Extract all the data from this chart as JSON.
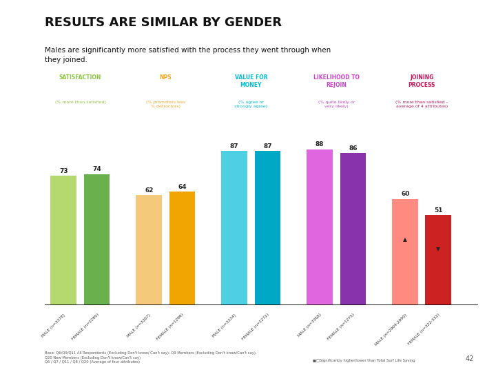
{
  "title": "RESULTS ARE SIMILAR BY GENDER",
  "subtitle": "Males are significantly more satisfied with the process they went through when\nthey joined.",
  "background_color": "#ffffff",
  "left_bar_color": "#29aee0",
  "groups": [
    {
      "label": "SATISFACTION",
      "sublabel": "(% more than satisfied)",
      "label_color": "#8dc63f",
      "bars": [
        {
          "value": 73,
          "color": "#b5d96e",
          "x_label": "MALE (n=3378)"
        },
        {
          "value": 74,
          "color": "#6ab04c",
          "x_label": "FEMALE (n=1289)"
        }
      ]
    },
    {
      "label": "NPS",
      "sublabel": "(% promoters less\n% detractors)",
      "label_color": "#f5a623",
      "bars": [
        {
          "value": 62,
          "color": "#f5c97a",
          "x_label": "MALE (n=3387)"
        },
        {
          "value": 64,
          "color": "#f0a500",
          "x_label": "FEMALE (n=1299)"
        }
      ]
    },
    {
      "label": "VALUE FOR\nMONEY",
      "sublabel": "(% agree or\nstrongly agree)",
      "label_color": "#00bcd4",
      "bars": [
        {
          "value": 87,
          "color": "#4dd0e1",
          "x_label": "MALE (n=3334)"
        },
        {
          "value": 87,
          "color": "#00a8c6",
          "x_label": "FEMALE (n=1272)"
        }
      ]
    },
    {
      "label": "LIKELIHOOD TO\nREJOIN",
      "sublabel": "(% quite likely or\nvery likely)",
      "label_color": "#cc44cc",
      "bars": [
        {
          "value": 88,
          "color": "#e066e0",
          "x_label": "MALE (n=3368)"
        },
        {
          "value": 86,
          "color": "#8833aa",
          "x_label": "FEMALE (n=1275)"
        }
      ]
    },
    {
      "label": "JOINING\nPROCESS",
      "sublabel": "(% more than satisfied –\naverage of 4 attributes)",
      "label_color": "#c2185b",
      "bars": [
        {
          "value": 60,
          "color": "#ff8a80",
          "x_label": "MALE (n=2904-2999)",
          "marker": "up"
        },
        {
          "value": 51,
          "color": "#cc2222",
          "x_label": "FEMALE (n=322-332)",
          "marker": "down"
        }
      ]
    }
  ],
  "footnote": "Base: Q6/Q9/Q11 All Respondents (Excluding Don't know/ Can't say), Q9 Members (Excluding Don't know/Can't say),\nQ20 New Members (Excluding Don't know/Can't say)\nQ6 / Q7 / Q11 / Q8 / Q20 (Average of four attributes)",
  "page_number": "42",
  "right_note": "■□Significantly higher/lower than Total Surf Life Saving"
}
